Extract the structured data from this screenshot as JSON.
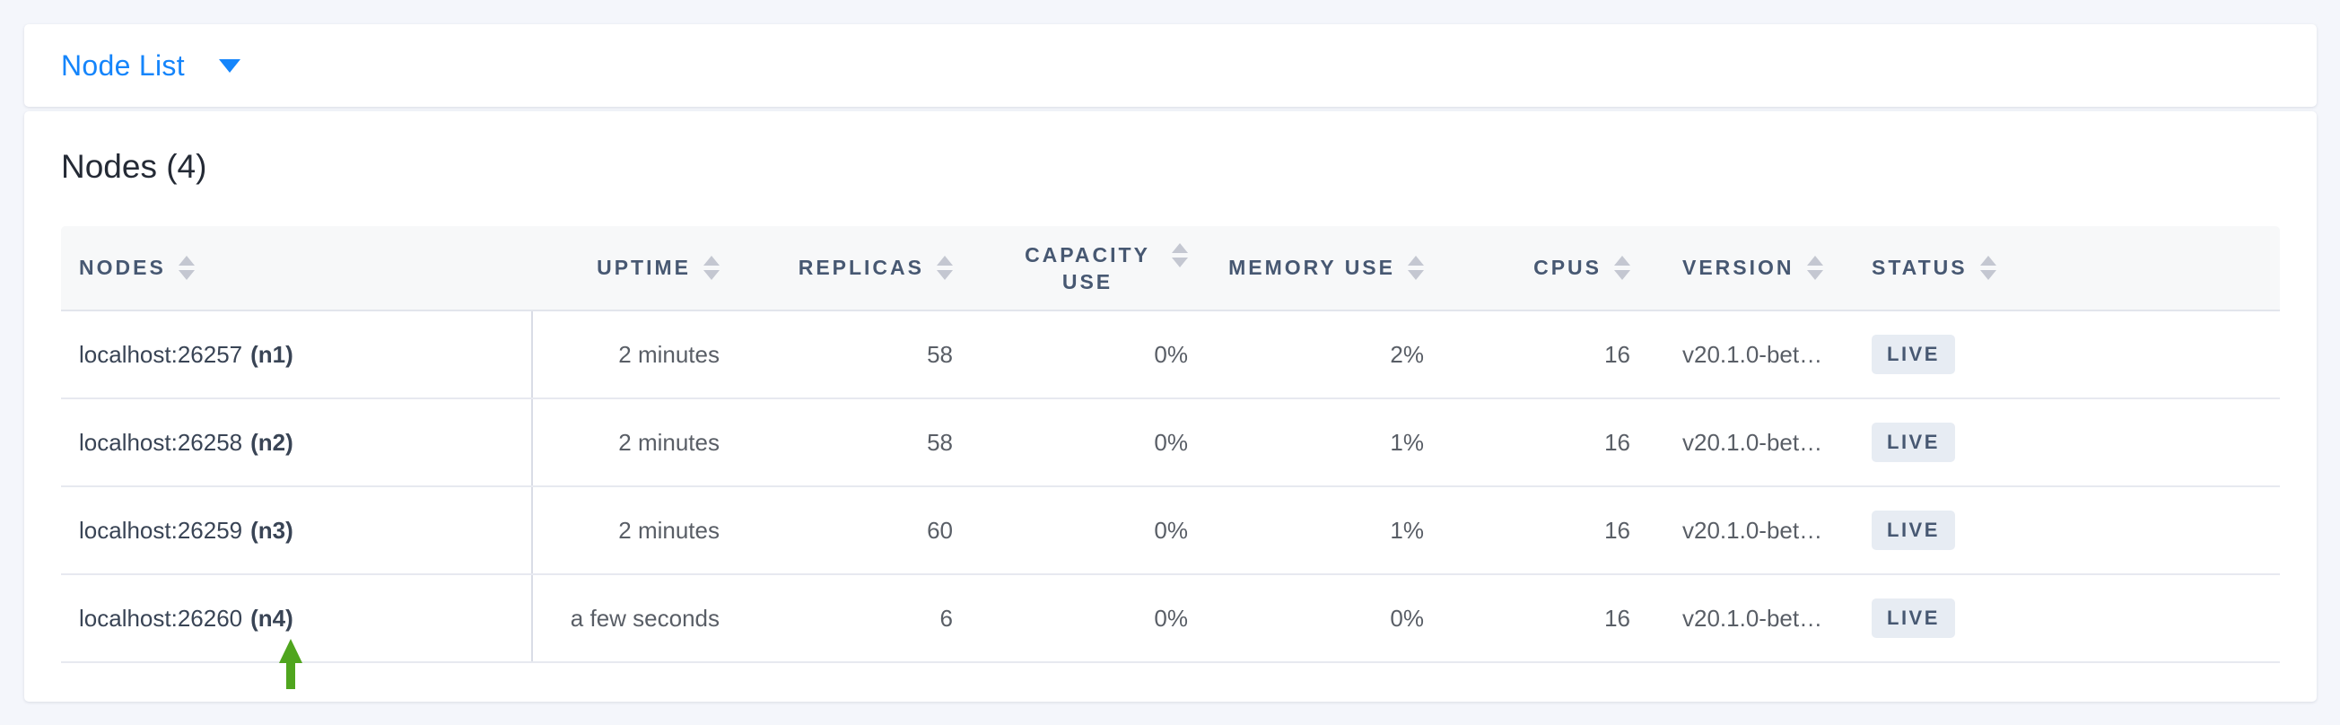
{
  "view_selector": {
    "label": "Node List",
    "accent_color": "#1585fb"
  },
  "page": {
    "title": "Nodes (4)"
  },
  "table": {
    "columns": [
      {
        "label": "NODES",
        "align": "left"
      },
      {
        "label": "UPTIME",
        "align": "right"
      },
      {
        "label": "REPLICAS",
        "align": "right"
      },
      {
        "label": "CAPACITY USE",
        "align": "right"
      },
      {
        "label": "MEMORY USE",
        "align": "right"
      },
      {
        "label": "CPUS",
        "align": "right"
      },
      {
        "label": "VERSION",
        "align": "left"
      },
      {
        "label": "STATUS",
        "align": "left"
      }
    ],
    "rows": [
      {
        "node": "localhost:26257",
        "node_id": "(n1)",
        "uptime": "2 minutes",
        "replicas": "58",
        "capacity_use": "0%",
        "memory_use": "2%",
        "cpus": "16",
        "version": "v20.1.0-bet…",
        "status": "LIVE"
      },
      {
        "node": "localhost:26258",
        "node_id": "(n2)",
        "uptime": "2 minutes",
        "replicas": "58",
        "capacity_use": "0%",
        "memory_use": "1%",
        "cpus": "16",
        "version": "v20.1.0-bet…",
        "status": "LIVE"
      },
      {
        "node": "localhost:26259",
        "node_id": "(n3)",
        "uptime": "2 minutes",
        "replicas": "60",
        "capacity_use": "0%",
        "memory_use": "1%",
        "cpus": "16",
        "version": "v20.1.0-bet…",
        "status": "LIVE"
      },
      {
        "node": "localhost:26260",
        "node_id": "(n4)",
        "uptime": "a few seconds",
        "replicas": "6",
        "capacity_use": "0%",
        "memory_use": "0%",
        "cpus": "16",
        "version": "v20.1.0-bet…",
        "status": "LIVE"
      }
    ],
    "status_badge": {
      "background": "#e7ecf3",
      "text_color": "#475872"
    }
  },
  "annotation": {
    "arrow_color": "#4fa51e"
  }
}
